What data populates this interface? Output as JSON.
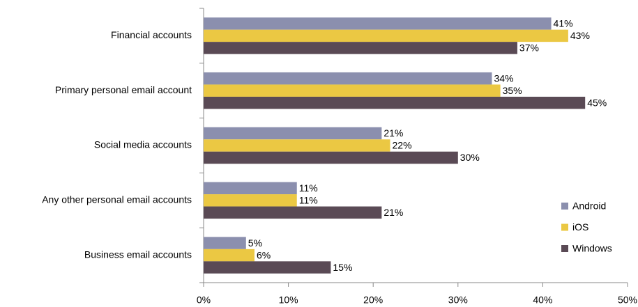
{
  "chart_data": {
    "type": "bar",
    "orientation": "horizontal",
    "categories": [
      "Financial accounts",
      "Primary personal email account",
      "Social media accounts",
      "Any other personal email accounts",
      "Business email accounts"
    ],
    "series": [
      {
        "name": "Android",
        "color": "#8b8fae",
        "values": [
          41,
          34,
          21,
          11,
          5
        ],
        "value_labels": [
          "41%",
          "34%",
          "21%",
          "11%",
          "5%"
        ]
      },
      {
        "name": "iOS",
        "color": "#ebc843",
        "values": [
          43,
          35,
          22,
          11,
          6
        ],
        "value_labels": [
          "43%",
          "35%",
          "22%",
          "11%",
          "6%"
        ]
      },
      {
        "name": "Windows",
        "color": "#5a4a55",
        "values": [
          37,
          45,
          30,
          21,
          15
        ],
        "value_labels": [
          "37%",
          "45%",
          "30%",
          "21%",
          "15%"
        ]
      }
    ],
    "xlim": [
      0,
      50
    ],
    "xticks": [
      {
        "value": 0,
        "label": "0%"
      },
      {
        "value": 10,
        "label": "10%"
      },
      {
        "value": 20,
        "label": "20%"
      },
      {
        "value": 30,
        "label": "30%"
      },
      {
        "value": 40,
        "label": "40%"
      },
      {
        "value": 50,
        "label": "50%"
      }
    ],
    "legend": "right"
  }
}
